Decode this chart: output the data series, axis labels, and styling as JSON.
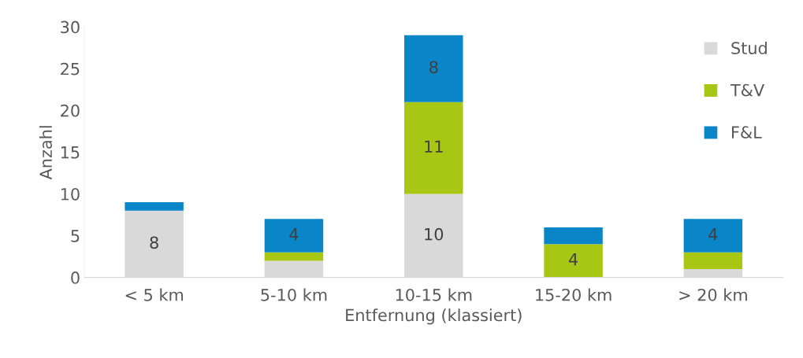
{
  "chart_data": {
    "type": "bar",
    "stacked": true,
    "xlabel": "Entfernung (klassiert)",
    "ylabel": "Anzahl",
    "categories": [
      "< 5 km",
      "5-10 km",
      "10-15 km",
      "15-20 km",
      "> 20 km"
    ],
    "series": [
      {
        "name": "Stud",
        "color": "#d9d9d9",
        "values": [
          8,
          2,
          10,
          0,
          1
        ],
        "value_labels": [
          "8",
          null,
          "10",
          null,
          null
        ]
      },
      {
        "name": "T&V",
        "color": "#a8c614",
        "values": [
          0,
          1,
          11,
          4,
          2
        ],
        "value_labels": [
          null,
          null,
          "11",
          "4",
          null
        ]
      },
      {
        "name": "F&L",
        "color": "#0a86c8",
        "values": [
          1,
          4,
          8,
          2,
          4
        ],
        "value_labels": [
          null,
          "4",
          "8",
          null,
          "4"
        ]
      }
    ],
    "ylim": [
      0,
      30
    ],
    "yticks": [
      0,
      5,
      10,
      15,
      20,
      25,
      30
    ],
    "grid": false,
    "legend": "top right"
  }
}
